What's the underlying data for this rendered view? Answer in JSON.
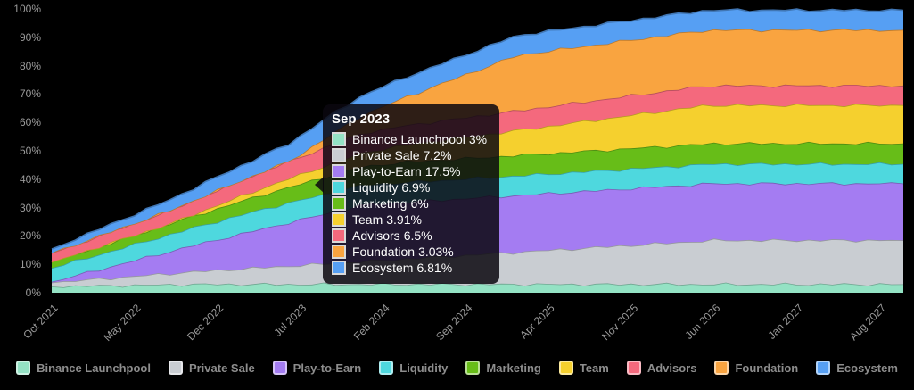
{
  "tooltip": {
    "title": "Sep 2023",
    "hover_month": "Sep 2023",
    "rows": [
      {
        "label": "Binance Launchpool",
        "value": "3%"
      },
      {
        "label": "Private Sale",
        "value": "7.2%"
      },
      {
        "label": "Play-to-Earn",
        "value": "17.5%"
      },
      {
        "label": "Liquidity",
        "value": "6.9%"
      },
      {
        "label": "Marketing",
        "value": "6%"
      },
      {
        "label": "Team",
        "value": "3.91%"
      },
      {
        "label": "Advisors",
        "value": "6.5%"
      },
      {
        "label": "Foundation",
        "value": "3.03%"
      },
      {
        "label": "Ecosystem",
        "value": "6.81%"
      }
    ]
  },
  "chart_data": {
    "type": "area",
    "stacked": true,
    "grid": false,
    "legend_position": "bottom",
    "background_color": "#000000",
    "axis_text_color": "#9a9a9a",
    "x_unit": "month",
    "x_start": "Oct 2021",
    "x_end": "Oct 2027",
    "ylim": [
      0,
      100
    ],
    "y_tick_labels": [
      "100%",
      "90%",
      "80%",
      "70%",
      "60%",
      "50%",
      "40%",
      "30%",
      "20%",
      "10%",
      "0%"
    ],
    "x_ticks": [
      {
        "label": "Oct 2021",
        "month": 0
      },
      {
        "label": "May 2022",
        "month": 7
      },
      {
        "label": "Dec 2022",
        "month": 14
      },
      {
        "label": "Jul 2023",
        "month": 21
      },
      {
        "label": "Feb 2024",
        "month": 28
      },
      {
        "label": "Sep 2024",
        "month": 35
      },
      {
        "label": "Apr 2025",
        "month": 42
      },
      {
        "label": "Nov 2025",
        "month": 49
      },
      {
        "label": "Jun 2026",
        "month": 56
      },
      {
        "label": "Jan 2027",
        "month": 63
      },
      {
        "label": "Aug 2027",
        "month": 70
      }
    ],
    "series": [
      {
        "name": "Binance Launchpool",
        "color": "#94E2C4",
        "values": [
          2.2,
          2.27,
          2.33,
          2.4,
          2.47,
          2.53,
          2.6,
          2.67,
          2.73,
          2.8,
          2.87,
          2.93,
          3,
          3,
          3,
          3,
          3,
          3,
          3,
          3,
          3,
          3,
          3,
          3,
          3,
          3,
          3,
          3,
          3,
          3,
          3,
          3,
          3,
          3,
          3,
          3,
          3,
          3,
          3,
          3,
          3,
          3,
          3,
          3,
          3,
          3,
          3,
          3,
          3,
          3,
          3,
          3,
          3,
          3,
          3,
          3,
          3,
          3,
          3,
          3,
          3,
          3,
          3,
          3,
          3,
          3,
          3,
          3,
          3,
          3,
          3,
          3,
          3
        ]
      },
      {
        "name": "Private Sale",
        "color": "#C9CDD2",
        "values": [
          1.4,
          1.65,
          1.9,
          2.16,
          2.41,
          2.66,
          2.91,
          3.16,
          3.42,
          3.67,
          3.92,
          4.17,
          4.42,
          4.68,
          4.93,
          5.18,
          5.43,
          5.68,
          5.94,
          6.19,
          6.44,
          6.69,
          6.94,
          7.2,
          7.45,
          7.7,
          7.95,
          8.2,
          8.46,
          8.71,
          8.96,
          9.21,
          9.46,
          9.72,
          9.97,
          10.22,
          10.47,
          10.72,
          10.98,
          11.23,
          11.48,
          11.73,
          11.98,
          12.24,
          12.49,
          12.74,
          12.99,
          13.24,
          13.5,
          13.75,
          14,
          14.25,
          14.5,
          14.76,
          15.01,
          15.26,
          15.5,
          15.5,
          15.5,
          15.5,
          15.5,
          15.5,
          15.5,
          15.5,
          15.5,
          15.5,
          15.5,
          15.5,
          15.5,
          15.5,
          15.5,
          15.5,
          15.5
        ]
      },
      {
        "name": "Play-to-Earn",
        "color": "#A47CF2",
        "values": [
          0.3,
          1.05,
          1.8,
          2.54,
          3.29,
          4.04,
          4.79,
          5.54,
          6.28,
          7.03,
          7.78,
          8.53,
          9.28,
          10.02,
          10.77,
          11.52,
          12.27,
          13.02,
          13.76,
          14.51,
          15.26,
          16.01,
          16.76,
          17.5,
          18.25,
          19,
          19.75,
          20,
          20,
          20,
          20,
          20,
          20,
          20,
          20,
          20,
          20,
          20,
          20,
          20,
          20,
          20,
          20,
          20,
          20,
          20,
          20,
          20,
          20,
          20,
          20,
          20,
          20,
          20,
          20,
          20,
          20,
          20,
          20,
          20,
          20,
          20,
          20,
          20,
          20,
          20,
          20,
          20,
          20,
          20,
          20,
          20,
          20
        ]
      },
      {
        "name": "Liquidity",
        "color": "#4ED8DE",
        "values": [
          4.8,
          4.92,
          5.03,
          5.15,
          5.27,
          5.38,
          5.5,
          5.62,
          5.73,
          5.85,
          5.97,
          6.08,
          6.2,
          6.32,
          6.43,
          6.55,
          6.67,
          6.78,
          6.9,
          6.9,
          6.9,
          6.9,
          6.9,
          6.9,
          6.9,
          6.9,
          6.9,
          6.9,
          6.9,
          6.9,
          6.9,
          6.9,
          6.9,
          6.9,
          6.9,
          6.9,
          6.9,
          6.9,
          6.9,
          6.9,
          6.9,
          6.9,
          6.9,
          6.9,
          6.9,
          6.9,
          6.9,
          6.9,
          6.9,
          6.9,
          6.9,
          6.9,
          6.9,
          6.9,
          6.9,
          6.9,
          6.9,
          6.9,
          6.9,
          6.9,
          6.9,
          6.9,
          6.9,
          6.9,
          6.9,
          6.9,
          6.9,
          6.9,
          6.9,
          6.9,
          6.9,
          6.9,
          6.9
        ]
      },
      {
        "name": "Marketing",
        "color": "#67BD18",
        "values": [
          2.1,
          2.27,
          2.44,
          2.61,
          2.78,
          2.95,
          3.12,
          3.29,
          3.46,
          3.63,
          3.8,
          3.97,
          4.14,
          4.31,
          4.48,
          4.65,
          4.82,
          4.99,
          5.16,
          5.33,
          5.5,
          5.67,
          5.84,
          6,
          6.18,
          6.35,
          6.52,
          6.69,
          6.86,
          7.03,
          7.2,
          7.2,
          7.2,
          7.2,
          7.2,
          7.2,
          7.2,
          7.2,
          7.2,
          7.2,
          7.2,
          7.2,
          7.2,
          7.2,
          7.2,
          7.2,
          7.2,
          7.2,
          7.2,
          7.2,
          7.2,
          7.2,
          7.2,
          7.2,
          7.2,
          7.2,
          7.2,
          7.2,
          7.2,
          7.2,
          7.2,
          7.2,
          7.2,
          7.2,
          7.2,
          7.2,
          7.2,
          7.2,
          7.2,
          7.2,
          7.2,
          7.2,
          7.2
        ]
      },
      {
        "name": "Team",
        "color": "#F5D02E",
        "values": [
          0,
          0,
          0,
          0,
          0,
          0,
          0,
          0,
          0,
          0,
          0,
          0.3,
          0.6,
          0.9,
          1.2,
          1.5,
          1.8,
          2.1,
          2.4,
          2.7,
          3,
          3.3,
          3.6,
          3.91,
          4.2,
          4.5,
          4.8,
          5.1,
          5.4,
          5.7,
          6,
          6.3,
          6.6,
          6.9,
          7.2,
          7.5,
          7.8,
          8.1,
          8.4,
          8.7,
          9,
          9.3,
          9.6,
          9.9,
          10.2,
          10.5,
          10.8,
          11.1,
          11.4,
          11.7,
          12,
          12.3,
          12.6,
          12.9,
          13.2,
          13.5,
          13.5,
          13.5,
          13.5,
          13.5,
          13.5,
          13.5,
          13.5,
          13.5,
          13.5,
          13.5,
          13.5,
          13.5,
          13.5,
          13.5,
          13.5,
          13.5,
          13.5
        ]
      },
      {
        "name": "Advisors",
        "color": "#F4697D",
        "values": [
          3.2,
          3.34,
          3.49,
          3.63,
          3.77,
          3.92,
          4.06,
          4.2,
          4.35,
          4.49,
          4.64,
          4.78,
          4.92,
          5.07,
          5.21,
          5.35,
          5.5,
          5.64,
          5.78,
          5.93,
          6.07,
          6.21,
          6.36,
          6.5,
          6.64,
          6.79,
          6.9,
          6.9,
          6.9,
          6.9,
          6.9,
          6.9,
          6.9,
          6.9,
          6.9,
          6.9,
          6.9,
          6.9,
          6.9,
          6.9,
          6.9,
          6.9,
          6.9,
          6.9,
          6.9,
          6.9,
          6.9,
          6.9,
          6.9,
          6.9,
          6.9,
          6.9,
          6.9,
          6.9,
          6.9,
          6.9,
          6.9,
          6.9,
          6.9,
          6.9,
          6.9,
          6.9,
          6.9,
          6.9,
          6.9,
          6.9,
          6.9,
          6.9,
          6.9,
          6.9,
          6.9,
          6.9,
          6.9
        ]
      },
      {
        "name": "Foundation",
        "color": "#F9A440",
        "values": [
          0,
          0,
          0,
          0,
          0,
          0,
          0,
          0,
          0,
          0,
          0,
          0,
          0,
          0,
          0,
          0,
          0,
          0,
          0,
          0,
          0,
          1.01,
          2.02,
          3.03,
          4.04,
          5.05,
          6.06,
          7.07,
          8.08,
          9.09,
          10.1,
          11.11,
          12.12,
          13.13,
          14.14,
          15.15,
          16.16,
          17.17,
          18.18,
          19.19,
          19.6,
          19.6,
          19.6,
          19.6,
          19.6,
          19.6,
          19.6,
          19.6,
          19.6,
          19.6,
          19.6,
          19.6,
          19.6,
          19.6,
          19.6,
          19.6,
          19.6,
          19.6,
          19.6,
          19.6,
          19.6,
          19.6,
          19.6,
          19.6,
          19.6,
          19.6,
          19.6,
          19.6,
          19.6,
          19.6,
          19.6,
          19.6,
          19.6
        ]
      },
      {
        "name": "Ecosystem",
        "color": "#569FF3",
        "values": [
          1.4,
          1.64,
          1.87,
          2.11,
          2.34,
          2.58,
          2.81,
          3.05,
          3.28,
          3.52,
          3.75,
          3.99,
          4.22,
          4.46,
          4.69,
          4.93,
          5.16,
          5.4,
          5.63,
          5.87,
          6.1,
          6.34,
          6.57,
          6.81,
          6.9,
          6.9,
          6.9,
          6.9,
          6.9,
          6.9,
          6.9,
          6.9,
          6.9,
          6.9,
          6.9,
          6.9,
          6.9,
          6.9,
          6.9,
          6.9,
          6.9,
          6.9,
          6.9,
          6.9,
          6.9,
          6.9,
          6.9,
          6.9,
          6.9,
          6.9,
          6.9,
          6.9,
          6.9,
          6.9,
          6.9,
          6.9,
          6.9,
          6.9,
          6.9,
          6.9,
          6.9,
          6.9,
          6.9,
          6.9,
          6.9,
          6.9,
          6.9,
          6.9,
          6.9,
          6.9,
          6.9,
          6.9,
          6.9
        ]
      }
    ]
  }
}
